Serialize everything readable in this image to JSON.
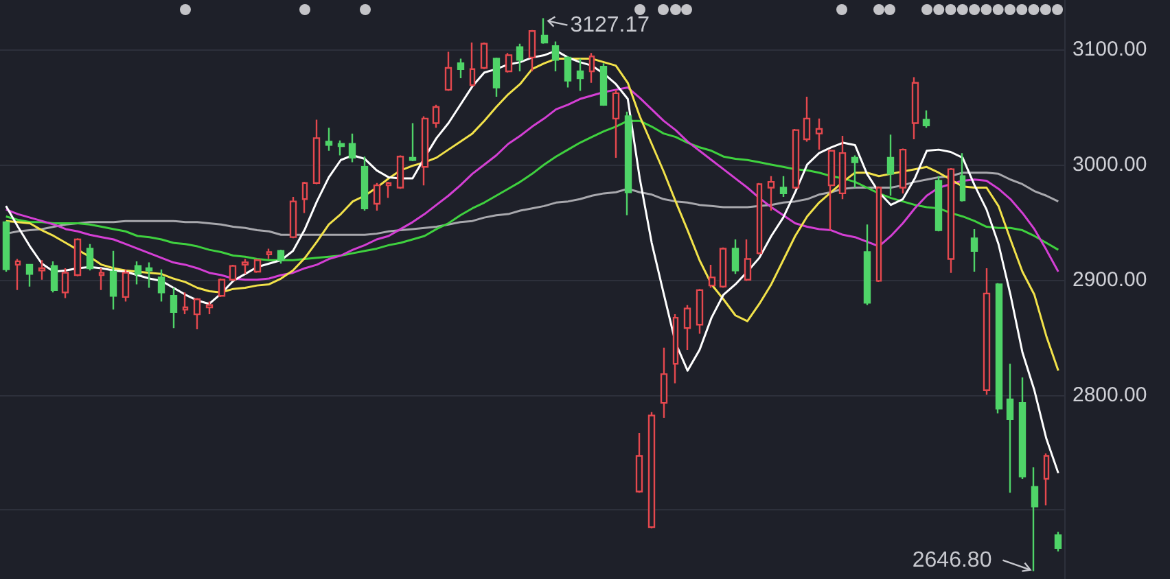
{
  "chart_data": {
    "type": "candlestick",
    "categories": [
      null,
      null,
      null,
      null,
      null,
      null,
      null,
      null,
      null,
      null,
      null,
      null,
      null,
      null,
      null,
      null,
      null,
      null,
      null,
      null,
      null,
      null,
      null,
      null,
      null,
      null,
      null,
      null,
      null,
      null,
      null,
      null,
      null,
      null,
      null,
      null,
      null,
      null,
      null,
      null,
      null,
      null,
      null,
      null,
      null,
      null,
      null,
      null,
      null,
      null,
      null,
      null,
      null,
      null,
      null,
      null,
      null,
      null,
      null,
      null,
      null,
      null,
      null,
      null,
      null,
      null,
      null,
      null,
      null,
      null,
      null,
      null,
      null,
      null,
      null,
      null,
      null,
      null,
      null,
      null,
      null,
      null,
      null,
      null,
      null,
      null,
      null,
      null,
      null
    ],
    "ylim": [
      2640,
      3143
    ],
    "yticks": [
      {
        "value": 2700,
        "label": null
      },
      {
        "value": 2800,
        "label": "2800.00"
      },
      {
        "value": 2900,
        "label": "2900.00"
      },
      {
        "value": 3000,
        "label": "3000.00"
      },
      {
        "value": 3100,
        "label": "3100.00"
      }
    ],
    "grid": "y",
    "tick_labels": "y",
    "annotations": [
      "3127.17",
      "2646.80"
    ],
    "series": [
      {
        "type": "line",
        "color": "#a8a8ad",
        "values": [
          2940,
          2942,
          2943,
          2944,
          2946,
          2948,
          2949,
          2950,
          2950,
          2950,
          2951,
          2951,
          2951,
          2951,
          2951,
          2950,
          2950,
          2949,
          2948,
          2946,
          2945,
          2943,
          2942,
          2939,
          2939,
          2939,
          2939,
          2939,
          2939,
          2939,
          2939,
          2940,
          2942,
          2943,
          2944,
          2945,
          2946,
          2948,
          2950,
          2951,
          2954,
          2956,
          2957,
          2960,
          2962,
          2964,
          2967,
          2968,
          2970,
          2973,
          2975,
          2976,
          2979,
          2976,
          2974,
          2970,
          2968,
          2967,
          2965,
          2964,
          2963,
          2963,
          2963,
          2964,
          2965,
          2967,
          2968,
          2970,
          2974,
          2976,
          2979,
          2980,
          2980,
          2980,
          2980,
          2982,
          2985,
          2987,
          2989,
          2990,
          2993,
          2993,
          2993,
          2992,
          2987,
          2983,
          2977,
          2973,
          2968
        ]
      },
      {
        "type": "line",
        "color": "#3fd13f",
        "values": [
          2955,
          2952,
          2950,
          2950,
          2949,
          2949,
          2949,
          2948,
          2946,
          2944,
          2942,
          2938,
          2937,
          2935,
          2932,
          2931,
          2929,
          2926,
          2924,
          2921,
          2920,
          2918,
          2917,
          2917,
          2917,
          2918,
          2919,
          2920,
          2921,
          2923,
          2925,
          2927,
          2930,
          2932,
          2935,
          2938,
          2944,
          2949,
          2956,
          2962,
          2967,
          2973,
          2979,
          2985,
          2992,
          3000,
          3007,
          3013,
          3019,
          3024,
          3029,
          3033,
          3038,
          3038,
          3033,
          3027,
          3024,
          3019,
          3015,
          3012,
          3007,
          3005,
          3004,
          3002,
          3000,
          2998,
          2996,
          2995,
          2993,
          2990,
          2988,
          2985,
          2980,
          2975,
          2971,
          2968,
          2965,
          2963,
          2962,
          2958,
          2955,
          2951,
          2946,
          2945,
          2945,
          2943,
          2938,
          2932,
          2926
        ]
      },
      {
        "type": "line",
        "color": "#d43fd4",
        "values": [
          2961,
          2957,
          2954,
          2951,
          2948,
          2944,
          2942,
          2939,
          2937,
          2935,
          2931,
          2927,
          2923,
          2919,
          2915,
          2913,
          2910,
          2906,
          2904,
          2901,
          2900,
          2900,
          2901,
          2904,
          2906,
          2910,
          2913,
          2918,
          2921,
          2926,
          2930,
          2935,
          2938,
          2944,
          2950,
          2957,
          2965,
          2973,
          2982,
          2992,
          3000,
          3008,
          3018,
          3025,
          3033,
          3040,
          3048,
          3052,
          3057,
          3060,
          3063,
          3065,
          3067,
          3058,
          3048,
          3038,
          3030,
          3020,
          3012,
          3004,
          2996,
          2988,
          2980,
          2971,
          2963,
          2956,
          2949,
          2946,
          2944,
          2943,
          2939,
          2937,
          2933,
          2929,
          2938,
          2949,
          2962,
          2973,
          2980,
          2983,
          2986,
          2987,
          2986,
          2979,
          2970,
          2958,
          2944,
          2926,
          2907
        ]
      },
      {
        "type": "line",
        "color": "#f2e24a",
        "values": [
          2951,
          2950,
          2949,
          2943,
          2938,
          2932,
          2926,
          2920,
          2913,
          2910,
          2908,
          2907,
          2906,
          2905,
          2901,
          2898,
          2893,
          2890,
          2889,
          2892,
          2893,
          2895,
          2896,
          2901,
          2908,
          2919,
          2933,
          2948,
          2957,
          2968,
          2973,
          2980,
          2988,
          2995,
          2999,
          3002,
          3006,
          3013,
          3020,
          3027,
          3038,
          3050,
          3061,
          3070,
          3083,
          3088,
          3092,
          3092,
          3092,
          3092,
          3089,
          3086,
          3071,
          3042,
          3018,
          2994,
          2968,
          2943,
          2917,
          2896,
          2883,
          2869,
          2864,
          2879,
          2896,
          2917,
          2938,
          2955,
          2967,
          2976,
          2985,
          2993,
          2993,
          2990,
          2992,
          2994,
          2996,
          2998,
          2993,
          2987,
          2981,
          2980,
          2980,
          2964,
          2935,
          2907,
          2887,
          2851,
          2821
        ]
      },
      {
        "type": "line",
        "color": "#ffffff",
        "values": [
          2964,
          2946,
          2929,
          2914,
          2907,
          2908,
          2910,
          2911,
          2910,
          2908,
          2907,
          2904,
          2901,
          2899,
          2893,
          2887,
          2882,
          2879,
          2888,
          2899,
          2905,
          2911,
          2914,
          2917,
          2925,
          2944,
          2968,
          2989,
          3004,
          3008,
          3005,
          2995,
          2989,
          2988,
          2988,
          3006,
          3023,
          3036,
          3052,
          3068,
          3080,
          3083,
          3087,
          3089,
          3093,
          3095,
          3099,
          3093,
          3089,
          3086,
          3079,
          3070,
          3057,
          2988,
          2932,
          2888,
          2845,
          2821,
          2839,
          2867,
          2887,
          2896,
          2907,
          2919,
          2938,
          2954,
          2976,
          3000,
          3010,
          3015,
          3019,
          3017,
          2992,
          2976,
          2965,
          2970,
          2988,
          3012,
          3013,
          3011,
          3006,
          2982,
          2961,
          2931,
          2887,
          2837,
          2804,
          2762,
          2732
        ]
      },
      {
        "colors": [
          "#4fd468",
          "#e5484e",
          "#4fd468",
          "#e5484e",
          "#4fd468",
          "#e5484e",
          "#e5484e",
          "#4fd468",
          "#e5484e",
          "#4fd468",
          "#e5484e",
          "#4fd468",
          "#4fd468",
          "#4fd468",
          "#4fd468",
          "#e5484e",
          "#e5484e",
          "#e5484e",
          "#e5484e",
          "#e5484e",
          "#e5484e",
          "#e5484e",
          "#e5484e",
          "#4fd468",
          "#e5484e",
          "#e5484e",
          "#e5484e",
          "#4fd468",
          "#4fd468",
          "#4fd468",
          "#4fd468",
          "#e5484e",
          "#e5484e",
          "#e5484e",
          "#4fd468",
          "#e5484e",
          "#e5484e",
          "#e5484e",
          "#4fd468",
          "#e5484e",
          "#e5484e",
          "#4fd468",
          "#e5484e",
          "#4fd468",
          "#e5484e",
          "#4fd468",
          "#4fd468",
          "#4fd468",
          "#4fd468",
          "#e5484e",
          "#4fd468",
          "#e5484e",
          "#4fd468",
          "#e5484e",
          "#e5484e",
          "#e5484e",
          "#e5484e",
          "#e5484e",
          "#e5484e",
          "#e5484e",
          "#e5484e",
          "#4fd468",
          "#e5484e",
          "#e5484e",
          "#e5484e",
          "#4fd468",
          "#e5484e",
          "#e5484e",
          "#e5484e",
          "#e5484e",
          "#e5484e",
          "#4fd468",
          "#4fd468",
          "#e5484e",
          "#4fd468",
          "#e5484e",
          "#e5484e",
          "#4fd468",
          "#4fd468",
          "#e5484e",
          "#4fd468",
          "#4fd468",
          "#e5484e",
          "#4fd468",
          "#4fd468",
          "#4fd468",
          "#4fd468",
          "#e5484e",
          "#4fd468"
        ],
        "ohlc": [
          [
            2950,
            2951,
            2907,
            2909
          ],
          [
            2913,
            2918,
            2891,
            2916
          ],
          [
            2913,
            2913,
            2894,
            2905
          ],
          [
            2908,
            2917,
            2900,
            2910
          ],
          [
            2912,
            2916,
            2889,
            2891
          ],
          [
            2889,
            2910,
            2884,
            2906
          ],
          [
            2904,
            2936,
            2903,
            2935
          ],
          [
            2927,
            2931,
            2908,
            2910
          ],
          [
            2904,
            2910,
            2891,
            2906
          ],
          [
            2907,
            2925,
            2874,
            2886
          ],
          [
            2885,
            2909,
            2881,
            2906
          ],
          [
            2912,
            2916,
            2896,
            2905
          ],
          [
            2910,
            2915,
            2893,
            2908
          ],
          [
            2902,
            2909,
            2881,
            2889
          ],
          [
            2886,
            2893,
            2858,
            2872
          ],
          [
            2874,
            2889,
            2870,
            2876
          ],
          [
            2870,
            2884,
            2857,
            2883
          ],
          [
            2876,
            2881,
            2870,
            2878
          ],
          [
            2886,
            2901,
            2885,
            2900
          ],
          [
            2900,
            2913,
            2899,
            2912
          ],
          [
            2913,
            2918,
            2905,
            2915
          ],
          [
            2907,
            2918,
            2906,
            2917
          ],
          [
            2922,
            2927,
            2918,
            2924
          ],
          [
            2925,
            2926,
            2914,
            2917
          ],
          [
            2937,
            2972,
            2936,
            2968
          ],
          [
            2970,
            2985,
            2958,
            2984
          ],
          [
            2984,
            3039,
            2983,
            3023
          ],
          [
            3020,
            3032,
            3012,
            3017
          ],
          [
            3018,
            3021,
            3008,
            3016
          ],
          [
            3018,
            3027,
            3002,
            3006
          ],
          [
            2998,
            3007,
            2960,
            2962
          ],
          [
            2966,
            2984,
            2960,
            2982
          ],
          [
            2982,
            2985,
            2971,
            2984
          ],
          [
            2980,
            3008,
            2979,
            3007
          ],
          [
            3006,
            3036,
            3003,
            3004
          ],
          [
            2998,
            3042,
            2982,
            3040
          ],
          [
            3036,
            3052,
            3032,
            3050
          ],
          [
            3065,
            3098,
            3064,
            3084
          ],
          [
            3088,
            3092,
            3075,
            3083
          ],
          [
            3069,
            3106,
            3068,
            3083
          ],
          [
            3084,
            3106,
            3083,
            3105
          ],
          [
            3092,
            3093,
            3059,
            3067
          ],
          [
            3081,
            3097,
            3080,
            3095
          ],
          [
            3102,
            3105,
            3081,
            3091
          ],
          [
            3093,
            3117,
            3081,
            3116
          ],
          [
            3112,
            3127.17,
            3105,
            3106
          ],
          [
            3103,
            3107,
            3081,
            3091
          ],
          [
            3093,
            3094,
            3067,
            3073
          ],
          [
            3081,
            3092,
            3064,
            3075
          ],
          [
            3081,
            3097,
            3071,
            3094
          ],
          [
            3085,
            3088,
            3051,
            3052
          ],
          [
            3040,
            3065,
            3006,
            3062
          ],
          [
            3042,
            3046,
            2956,
            2976
          ],
          [
            2716,
            2767,
            2715,
            2747
          ],
          [
            2685,
            2785,
            2684,
            2782
          ],
          [
            2793,
            2841,
            2780,
            2818
          ],
          [
            2827,
            2870,
            2810,
            2867
          ],
          [
            2858,
            2878,
            2839,
            2875
          ],
          [
            2861,
            2892,
            2853,
            2891
          ],
          [
            2895,
            2913,
            2893,
            2902
          ],
          [
            2894,
            2928,
            2893,
            2927
          ],
          [
            2927,
            2935,
            2905,
            2908
          ],
          [
            2900,
            2935,
            2899,
            2918
          ],
          [
            2923,
            2984,
            2922,
            2983
          ],
          [
            2980,
            2990,
            2960,
            2985
          ],
          [
            2980,
            2990,
            2972,
            2975
          ],
          [
            2980,
            3031,
            2979,
            3030
          ],
          [
            3022,
            3059,
            3020,
            3040
          ],
          [
            3027,
            3040,
            3013,
            3031
          ],
          [
            2982,
            3013,
            2943,
            3012
          ],
          [
            2975,
            3025,
            2970,
            3010
          ],
          [
            3006,
            3008,
            2980,
            3002
          ],
          [
            2924,
            2948,
            2878,
            2880
          ],
          [
            2899,
            2981,
            2898,
            2980
          ],
          [
            3006,
            3026,
            2973,
            2992
          ],
          [
            2980,
            3014,
            2975,
            3013
          ],
          [
            3036,
            3076,
            3022,
            3071
          ],
          [
            3039,
            3047,
            3032,
            3034
          ],
          [
            2986,
            2990,
            2942,
            2943
          ],
          [
            2918,
            2997,
            2906,
            2996
          ],
          [
            2990,
            3010,
            2968,
            2969
          ],
          [
            2936,
            2944,
            2907,
            2925
          ],
          [
            2804,
            2910,
            2800,
            2888
          ],
          [
            2896,
            2897,
            2784,
            2788
          ],
          [
            2796,
            2827,
            2715,
            2779
          ],
          [
            2793,
            2815,
            2727,
            2729
          ],
          [
            2720,
            2737,
            2646.8,
            2703
          ],
          [
            2727,
            2749,
            2704,
            2747
          ],
          [
            2678,
            2681,
            2664,
            2667
          ]
        ]
      }
    ]
  }
}
